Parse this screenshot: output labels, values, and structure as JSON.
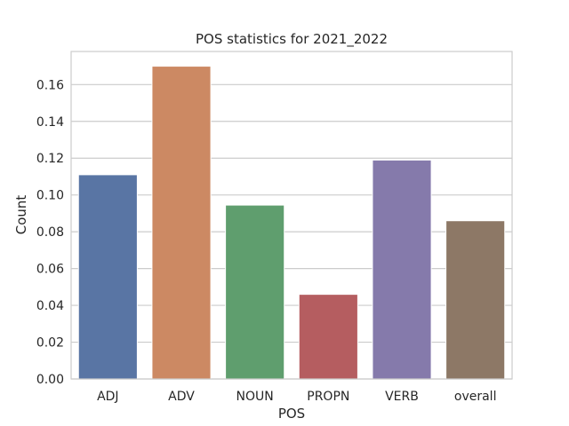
{
  "chart_data": {
    "type": "bar",
    "title": "POS statistics for 2021_2022",
    "xlabel": "POS",
    "ylabel": "Count",
    "categories": [
      "ADJ",
      "ADV",
      "NOUN",
      "PROPN",
      "VERB",
      "overall"
    ],
    "values": [
      0.111,
      0.17,
      0.0945,
      0.046,
      0.119,
      0.086
    ],
    "colors": [
      "#5975a4",
      "#cc8963",
      "#5f9e6e",
      "#b55d60",
      "#857aab",
      "#8d7866"
    ],
    "ylim": [
      0,
      0.178
    ],
    "yticks": [
      "0.00",
      "0.02",
      "0.04",
      "0.06",
      "0.08",
      "0.10",
      "0.12",
      "0.14",
      "0.16"
    ],
    "grid": true
  }
}
